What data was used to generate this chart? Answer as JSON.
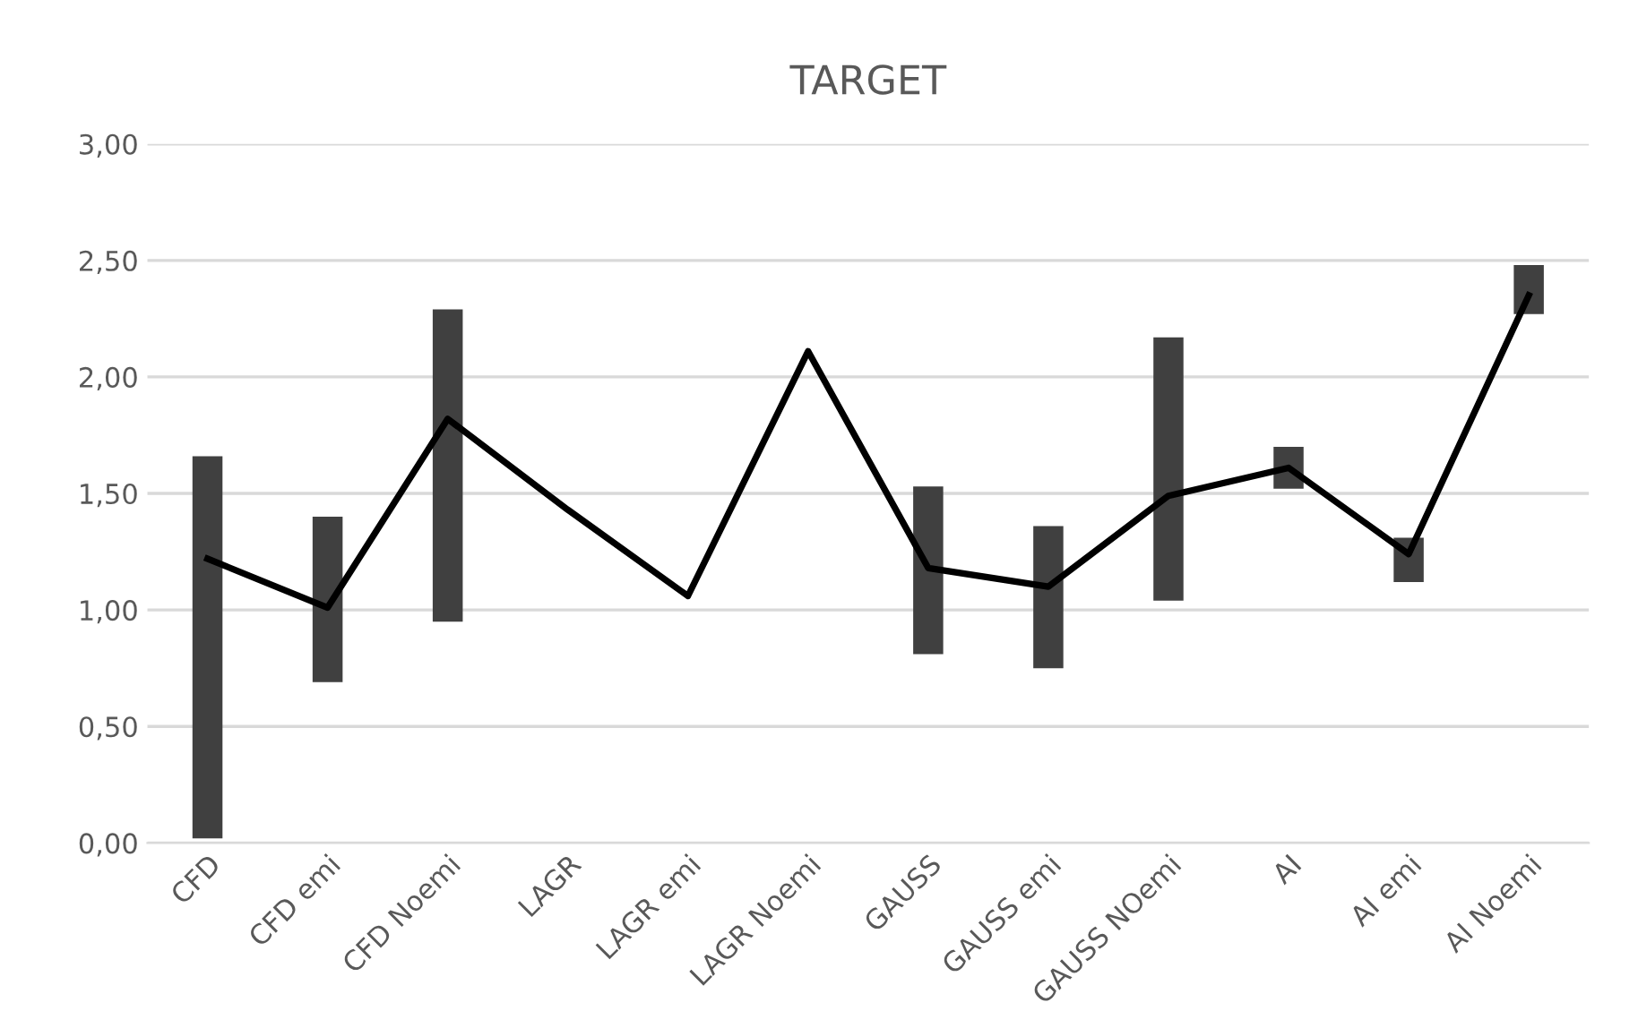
{
  "chart_data": {
    "type": "bar",
    "title": "TARGET",
    "categories": [
      "CFD",
      "CFD emi",
      "CFD Noemi",
      "LAGR",
      "LAGR emi",
      "LAGR Noemi",
      "GAUSS",
      "GAUSS emi",
      "GAUSS NOemi",
      "AI",
      "AI emi",
      "AI Noemi"
    ],
    "series": [
      {
        "color": "#404040",
        "base": [
          0.02,
          0.69,
          0.95,
          null,
          null,
          null,
          0.81,
          0.75,
          1.04,
          1.52,
          1.12,
          2.27
        ],
        "values": [
          1.64,
          0.71,
          1.34,
          null,
          null,
          null,
          0.72,
          0.61,
          1.13,
          0.18,
          0.19,
          0.21
        ]
      },
      {
        "type": "line",
        "color": "#000000",
        "values": [
          1.22,
          1.01,
          1.82,
          1.43,
          1.06,
          2.11,
          1.18,
          1.1,
          1.49,
          1.61,
          1.24,
          2.35
        ]
      }
    ],
    "ylim": [
      0,
      3
    ],
    "yticks": [
      {
        "value": 0,
        "label": "0,00"
      },
      {
        "value": 0.5,
        "label": "0,50"
      },
      {
        "value": 1,
        "label": "1,00"
      },
      {
        "value": 1.5,
        "label": "1,50"
      },
      {
        "value": 2,
        "label": "2,00"
      },
      {
        "value": 2.5,
        "label": "2,50"
      },
      {
        "value": 3,
        "label": "3,00"
      }
    ],
    "grid": "y",
    "legend": false,
    "marker": "none",
    "line_style": "solid"
  }
}
